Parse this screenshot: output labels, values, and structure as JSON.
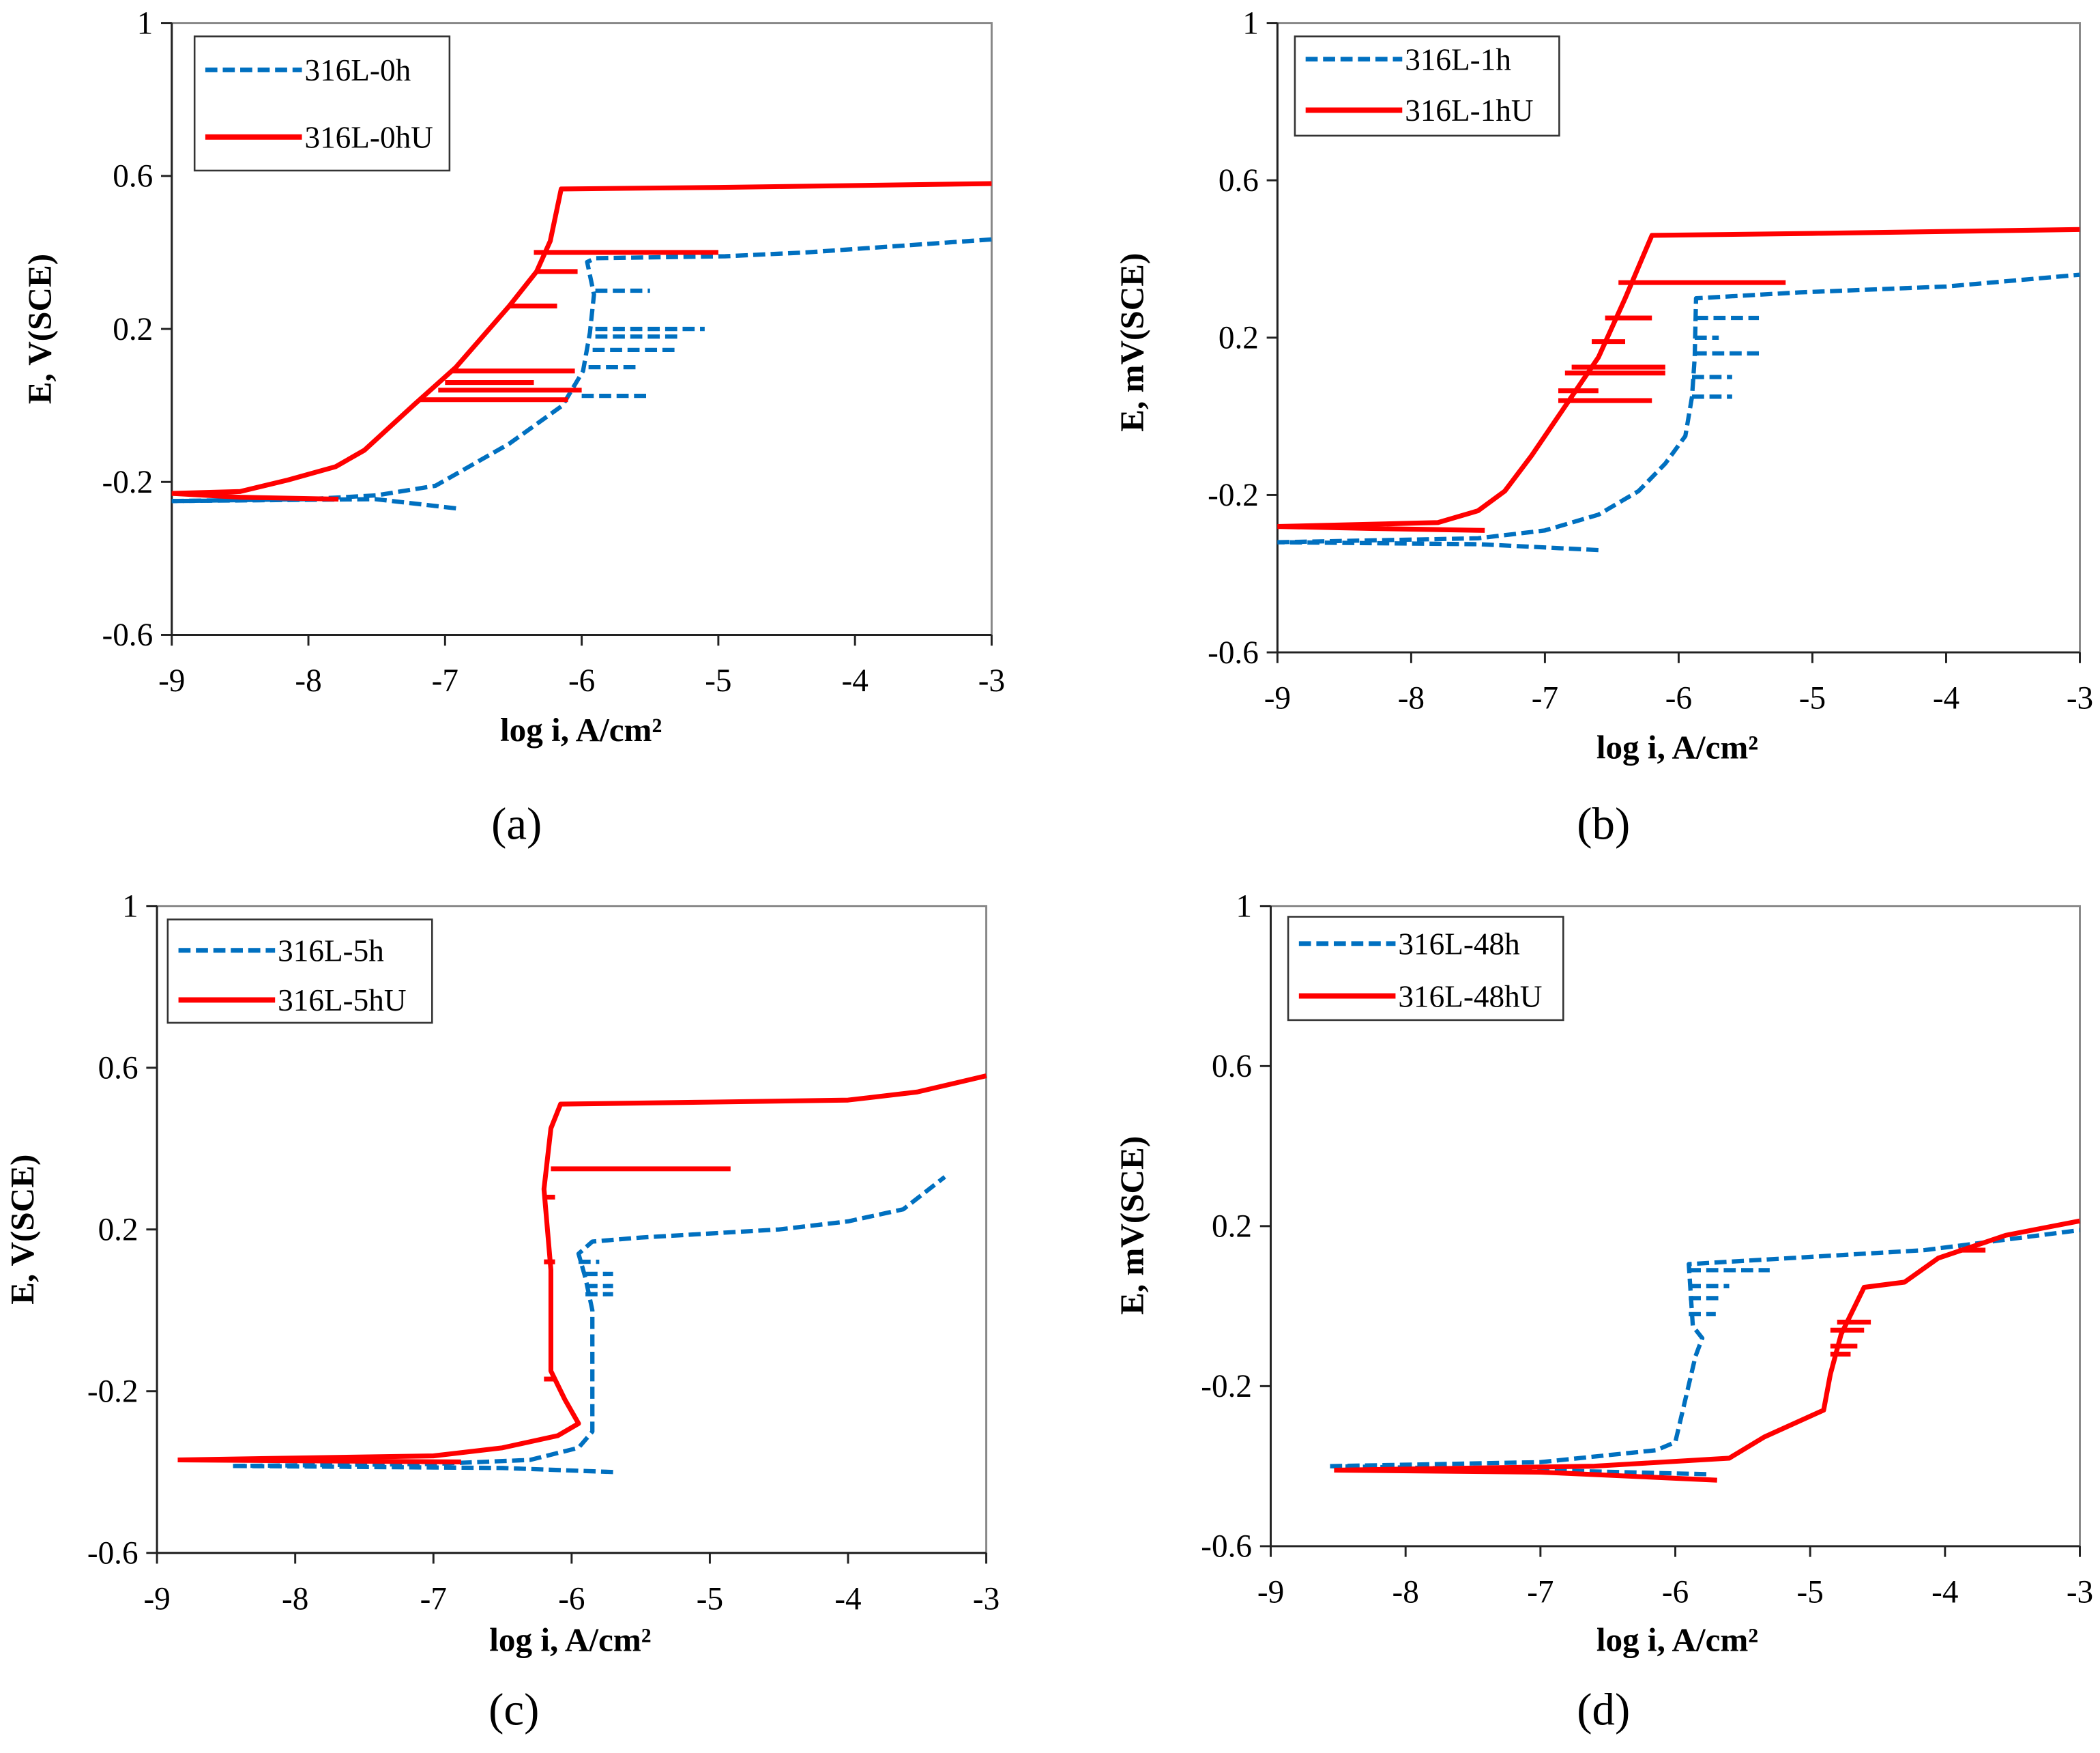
{
  "colors": {
    "blue": "#0070C0",
    "red": "#FF0000"
  },
  "chart_data": [
    {
      "type": "line",
      "panel": "(a)",
      "xlabel": "log i, A/cm²",
      "ylabel": "E, V(SCE)",
      "xlim": [
        -9,
        -3
      ],
      "ylim": [
        -0.6,
        1
      ],
      "xticks": [
        -9,
        -8,
        -7,
        -6,
        -5,
        -4,
        -3
      ],
      "yticks": [
        -0.6,
        -0.2,
        0.2,
        0.6,
        1
      ],
      "legend": "top-left",
      "series": [
        {
          "name": "316L-0h",
          "style": "dashed",
          "color": "blue",
          "lines": [
            [
              [
                -9,
                -0.25
              ],
              [
                -8,
                -0.245
              ],
              [
                -7.5,
                -0.235
              ],
              [
                -7.07,
                -0.21
              ],
              [
                -6.53,
                -0.1
              ],
              [
                -6.14,
                0.0
              ],
              [
                -5.99,
                0.09
              ],
              [
                -5.94,
                0.19
              ],
              [
                -5.91,
                0.29
              ],
              [
                -5.96,
                0.375
              ],
              [
                -5.9,
                0.385
              ],
              [
                -4.95,
                0.39
              ],
              [
                -4.36,
                0.4
              ],
              [
                -3,
                0.434
              ]
            ],
            [
              [
                -6.92,
                -0.269
              ],
              [
                -7.51,
                -0.245
              ],
              [
                -9,
                -0.25
              ]
            ]
          ],
          "spikes": [
            [
              0.3,
              -5.9,
              -5.5
            ],
            [
              0.2,
              -5.9,
              -5.1
            ],
            [
              0.18,
              -5.9,
              -5.3
            ],
            [
              0.145,
              -5.92,
              -5.3
            ],
            [
              0.1,
              -5.95,
              -5.6
            ],
            [
              0.025,
              -6.0,
              -5.5
            ]
          ]
        },
        {
          "name": "316L-0hU",
          "style": "solid",
          "color": "red",
          "lines": [
            [
              [
                -9,
                -0.23
              ],
              [
                -8.5,
                -0.225
              ],
              [
                -8.15,
                -0.195
              ],
              [
                -7.8,
                -0.16
              ],
              [
                -7.59,
                -0.117
              ],
              [
                -7.22,
                0.004
              ],
              [
                -6.92,
                0.1
              ],
              [
                -6.53,
                0.26
              ],
              [
                -6.33,
                0.35
              ],
              [
                -6.23,
                0.43
              ],
              [
                -6.15,
                0.566
              ],
              [
                -5,
                0.57
              ],
              [
                -3,
                0.58
              ]
            ],
            [
              [
                -7.78,
                -0.245
              ],
              [
                -8.5,
                -0.24
              ],
              [
                -9,
                -0.23
              ]
            ]
          ],
          "spikes": [
            [
              0.4,
              -6.35,
              -5.0
            ],
            [
              0.35,
              -6.33,
              -6.03
            ],
            [
              0.26,
              -6.53,
              -6.18
            ],
            [
              0.09,
              -6.95,
              -6.05
            ],
            [
              0.06,
              -7.0,
              -6.35
            ],
            [
              0.04,
              -7.05,
              -6.0
            ],
            [
              0.015,
              -7.18,
              -6.1
            ]
          ]
        }
      ]
    },
    {
      "type": "line",
      "panel": "(b)",
      "xlabel": "log i, A/cm²",
      "ylabel": "E, mV(SCE)",
      "xlim": [
        -9,
        -3
      ],
      "ylim": [
        -0.6,
        1
      ],
      "xticks": [
        -9,
        -8,
        -7,
        -6,
        -5,
        -4,
        -3
      ],
      "yticks": [
        -0.6,
        -0.2,
        0.2,
        0.6,
        1
      ],
      "legend": "top-left",
      "series": [
        {
          "name": "316L-1h",
          "style": "dashed",
          "color": "blue",
          "lines": [
            [
              [
                -9,
                -0.32
              ],
              [
                -7.5,
                -0.31
              ],
              [
                -7.0,
                -0.29
              ],
              [
                -6.6,
                -0.25
              ],
              [
                -6.3,
                -0.19
              ],
              [
                -6.1,
                -0.12
              ],
              [
                -5.95,
                -0.05
              ],
              [
                -5.9,
                0.05
              ],
              [
                -5.88,
                0.15
              ],
              [
                -5.87,
                0.3
              ],
              [
                -5.1,
                0.315
              ],
              [
                -4,
                0.33
              ],
              [
                -3,
                0.36
              ]
            ],
            [
              [
                -6.6,
                -0.34
              ],
              [
                -7.5,
                -0.325
              ],
              [
                -9,
                -0.32
              ]
            ]
          ],
          "spikes": [
            [
              0.25,
              -5.87,
              -5.4
            ],
            [
              0.16,
              -5.88,
              -5.4
            ],
            [
              0.1,
              -5.9,
              -5.6
            ],
            [
              0.05,
              -5.9,
              -5.6
            ],
            [
              0.2,
              -5.88,
              -5.7
            ]
          ]
        },
        {
          "name": "316L-1hU",
          "style": "solid",
          "color": "red",
          "lines": [
            [
              [
                -9,
                -0.28
              ],
              [
                -7.8,
                -0.27
              ],
              [
                -7.5,
                -0.24
              ],
              [
                -7.3,
                -0.19
              ],
              [
                -7.1,
                -0.1
              ],
              [
                -6.9,
                0.0
              ],
              [
                -6.6,
                0.15
              ],
              [
                -6.4,
                0.3
              ],
              [
                -6.2,
                0.46
              ],
              [
                -5,
                0.465
              ],
              [
                -3,
                0.475
              ]
            ],
            [
              [
                -7.45,
                -0.29
              ],
              [
                -8.3,
                -0.285
              ],
              [
                -9,
                -0.28
              ]
            ]
          ],
          "spikes": [
            [
              0.34,
              -6.45,
              -5.2
            ],
            [
              0.25,
              -6.55,
              -6.2
            ],
            [
              0.19,
              -6.65,
              -6.4
            ],
            [
              0.125,
              -6.8,
              -6.1
            ],
            [
              0.11,
              -6.85,
              -6.1
            ],
            [
              0.065,
              -6.9,
              -6.6
            ],
            [
              0.04,
              -6.9,
              -6.2
            ]
          ]
        }
      ]
    },
    {
      "type": "line",
      "panel": "(c)",
      "xlabel": "log i, A/cm²",
      "ylabel": "E, V(SCE)",
      "xlim": [
        -9,
        -3
      ],
      "ylim": [
        -0.6,
        1
      ],
      "xticks": [
        -9,
        -8,
        -7,
        -6,
        -5,
        -4,
        -3
      ],
      "yticks": [
        -0.6,
        -0.2,
        0.2,
        0.6,
        1
      ],
      "legend": "top-left",
      "series": [
        {
          "name": "316L-5h",
          "style": "dashed",
          "color": "blue",
          "lines": [
            [
              [
                -8.45,
                -0.385
              ],
              [
                -7,
                -0.38
              ],
              [
                -6.3,
                -0.37
              ],
              [
                -5.95,
                -0.34
              ],
              [
                -5.85,
                -0.3
              ],
              [
                -5.85,
                0.0
              ],
              [
                -5.9,
                0.08
              ],
              [
                -5.95,
                0.14
              ],
              [
                -5.85,
                0.17
              ],
              [
                -5.5,
                0.18
              ],
              [
                -5,
                0.19
              ],
              [
                -4.5,
                0.2
              ],
              [
                -4,
                0.22
              ],
              [
                -3.6,
                0.25
              ],
              [
                -3.3,
                0.33
              ]
            ],
            [
              [
                -5.7,
                -0.4
              ],
              [
                -6.5,
                -0.39
              ],
              [
                -8.45,
                -0.385
              ]
            ]
          ],
          "spikes": [
            [
              0.09,
              -5.9,
              -5.7
            ],
            [
              0.06,
              -5.9,
              -5.7
            ],
            [
              0.04,
              -5.9,
              -5.7
            ],
            [
              0.12,
              -5.95,
              -5.8
            ]
          ]
        },
        {
          "name": "316L-5hU",
          "style": "solid",
          "color": "red",
          "lines": [
            [
              [
                -8.85,
                -0.37
              ],
              [
                -7,
                -0.36
              ],
              [
                -6.5,
                -0.34
              ],
              [
                -6.1,
                -0.31
              ],
              [
                -5.95,
                -0.28
              ],
              [
                -6.05,
                -0.22
              ],
              [
                -6.15,
                -0.15
              ],
              [
                -6.15,
                0.1
              ],
              [
                -6.2,
                0.3
              ],
              [
                -6.15,
                0.45
              ],
              [
                -6.08,
                0.51
              ],
              [
                -5,
                0.515
              ],
              [
                -4,
                0.52
              ],
              [
                -3.5,
                0.54
              ],
              [
                -3,
                0.58
              ]
            ],
            [
              [
                -6.8,
                -0.375
              ],
              [
                -8.85,
                -0.37
              ]
            ]
          ],
          "spikes": [
            [
              0.35,
              -6.15,
              -4.85
            ],
            [
              -0.17,
              -6.2,
              -6.12
            ],
            [
              0.28,
              -6.2,
              -6.12
            ],
            [
              0.12,
              -6.2,
              -6.12
            ]
          ]
        }
      ]
    },
    {
      "type": "line",
      "panel": "(d)",
      "xlabel": "log i, A/cm²",
      "ylabel": "E, mV(SCE)",
      "xlim": [
        -9,
        -3
      ],
      "ylim": [
        -0.6,
        1
      ],
      "xticks": [
        -9,
        -8,
        -7,
        -6,
        -5,
        -4,
        -3
      ],
      "yticks": [
        -0.6,
        -0.2,
        0.2,
        0.6,
        1
      ],
      "legend": "top-left",
      "series": [
        {
          "name": "316L-48h",
          "style": "dashed",
          "color": "blue",
          "lines": [
            [
              [
                -8.56,
                -0.4
              ],
              [
                -7.0,
                -0.39
              ],
              [
                -6.14,
                -0.36
              ],
              [
                -6.0,
                -0.34
              ],
              [
                -5.85,
                -0.125
              ],
              [
                -5.8,
                -0.08
              ],
              [
                -5.87,
                -0.05
              ],
              [
                -5.9,
                0.105
              ],
              [
                -5.15,
                0.12
              ],
              [
                -4.15,
                0.14
              ],
              [
                -3,
                0.19
              ]
            ],
            [
              [
                -5.77,
                -0.42
              ],
              [
                -7,
                -0.41
              ],
              [
                -8.56,
                -0.4
              ]
            ]
          ],
          "spikes": [
            [
              0.09,
              -5.9,
              -5.3
            ],
            [
              0.05,
              -5.9,
              -5.6
            ],
            [
              0.02,
              -5.9,
              -5.65
            ],
            [
              -0.02,
              -5.9,
              -5.7
            ]
          ]
        },
        {
          "name": "316L-48hU",
          "style": "solid",
          "color": "red",
          "lines": [
            [
              [
                -8.53,
                -0.41
              ],
              [
                -6.6,
                -0.4
              ],
              [
                -5.6,
                -0.38
              ],
              [
                -5.34,
                -0.327
              ],
              [
                -4.9,
                -0.26
              ],
              [
                -4.85,
                -0.17
              ],
              [
                -4.77,
                -0.07
              ],
              [
                -4.6,
                0.047
              ],
              [
                -4.3,
                0.06
              ],
              [
                -4.05,
                0.12
              ],
              [
                -3.55,
                0.177
              ],
              [
                -3,
                0.213
              ]
            ],
            [
              [
                -5.69,
                -0.435
              ],
              [
                -7,
                -0.415
              ],
              [
                -8.53,
                -0.41
              ]
            ]
          ],
          "spikes": [
            [
              -0.04,
              -4.8,
              -4.55
            ],
            [
              -0.06,
              -4.85,
              -4.6
            ],
            [
              -0.1,
              -4.85,
              -4.65
            ],
            [
              -0.12,
              -4.85,
              -4.7
            ],
            [
              0.14,
              -3.9,
              -3.7
            ]
          ]
        }
      ]
    }
  ]
}
